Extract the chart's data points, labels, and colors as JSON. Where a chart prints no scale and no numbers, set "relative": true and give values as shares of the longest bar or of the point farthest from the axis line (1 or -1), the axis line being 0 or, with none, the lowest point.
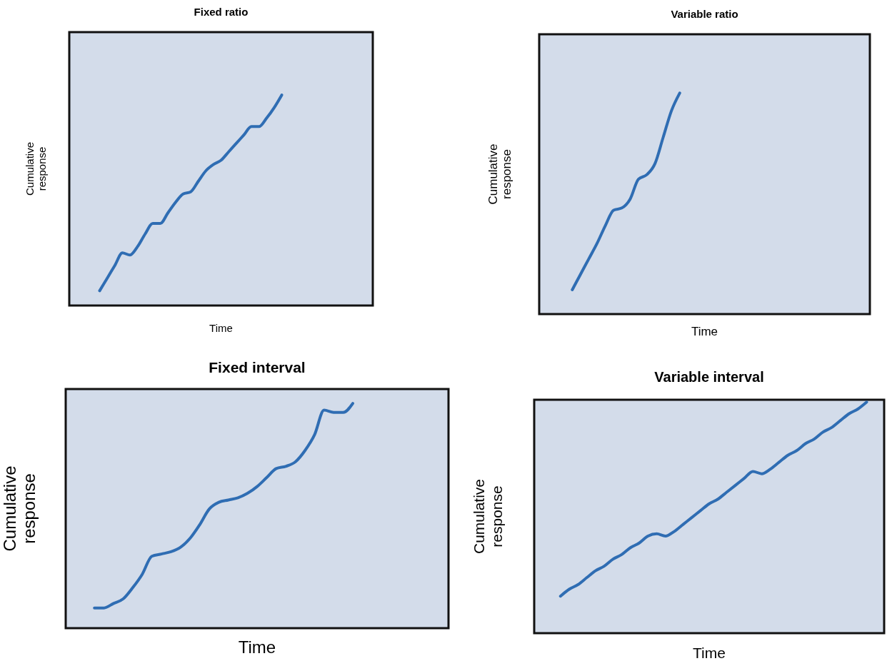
{
  "chart_data": [
    {
      "type": "line",
      "title": "Fixed ratio",
      "xlabel": "Time",
      "ylabel": "Cumulative response",
      "relative": true,
      "categories": [
        null,
        null,
        null,
        null,
        null,
        null,
        null,
        null,
        null,
        null,
        null,
        null,
        null,
        null,
        null,
        null,
        null,
        null,
        null,
        null,
        null,
        null,
        null,
        null,
        null,
        null,
        null,
        null,
        null,
        null,
        null,
        null,
        null,
        null,
        null,
        null,
        null,
        null,
        null,
        null,
        null
      ],
      "series": [
        {
          "color": "#2f6db3",
          "values": [
            null,
            null,
            null,
            null,
            0.07,
            0.13,
            0.19,
            0.25,
            0.24,
            0.28,
            0.34,
            0.39,
            0.39,
            0.44,
            0.49,
            0.53,
            0.54,
            0.59,
            0.64,
            0.67,
            0.69,
            0.73,
            0.77,
            0.81,
            0.85,
            0.85,
            0.89,
            0.94,
            1.0,
            null,
            null,
            null,
            null,
            null,
            null,
            null,
            null,
            null,
            null,
            null,
            null
          ]
        }
      ]
    },
    {
      "type": "line",
      "title": "Variable ratio",
      "xlabel": "Time",
      "ylabel": "Cumulative response",
      "relative": true,
      "categories": [
        null,
        null,
        null,
        null,
        null,
        null,
        null,
        null,
        null,
        null,
        null,
        null,
        null,
        null,
        null,
        null,
        null,
        null,
        null,
        null,
        null,
        null,
        null,
        null,
        null,
        null,
        null,
        null,
        null,
        null,
        null,
        null,
        null,
        null,
        null,
        null,
        null,
        null,
        null,
        null,
        null
      ],
      "series": [
        {
          "color": "#2f6db3",
          "values": [
            null,
            null,
            null,
            null,
            0.11,
            0.18,
            0.25,
            0.32,
            0.4,
            0.47,
            0.48,
            0.52,
            0.61,
            0.63,
            0.68,
            0.8,
            0.92,
            1.0,
            null,
            null,
            null,
            null,
            null,
            null,
            null,
            null,
            null,
            null,
            null,
            null,
            null,
            null,
            null,
            null,
            null,
            null,
            null,
            null,
            null,
            null,
            null
          ]
        }
      ]
    },
    {
      "type": "line",
      "title": "Fixed interval",
      "xlabel": "Time",
      "ylabel": "Cumulative response",
      "relative": true,
      "categories": [
        null,
        null,
        null,
        null,
        null,
        null,
        null,
        null,
        null,
        null,
        null,
        null,
        null,
        null,
        null,
        null,
        null,
        null,
        null,
        null,
        null,
        null,
        null,
        null,
        null,
        null,
        null,
        null,
        null,
        null,
        null,
        null,
        null,
        null,
        null,
        null,
        null,
        null,
        null,
        null,
        null
      ],
      "series": [
        {
          "color": "#2f6db3",
          "values": [
            null,
            null,
            null,
            0.09,
            0.09,
            0.11,
            0.13,
            0.18,
            0.24,
            0.32,
            0.33,
            0.34,
            0.36,
            0.4,
            0.46,
            0.53,
            0.56,
            0.57,
            0.58,
            0.6,
            0.63,
            0.67,
            0.71,
            0.72,
            0.74,
            0.79,
            0.86,
            0.97,
            0.96,
            0.96,
            1.0,
            null,
            null,
            null,
            null,
            null,
            null,
            null,
            null,
            null,
            null
          ]
        }
      ]
    },
    {
      "type": "line",
      "title": "Variable interval",
      "xlabel": "Time",
      "ylabel": "Cumulative response",
      "relative": true,
      "categories": [
        null,
        null,
        null,
        null,
        null,
        null,
        null,
        null,
        null,
        null,
        null,
        null,
        null,
        null,
        null,
        null,
        null,
        null,
        null,
        null,
        null,
        null,
        null,
        null,
        null,
        null,
        null,
        null,
        null,
        null,
        null,
        null,
        null,
        null,
        null,
        null,
        null,
        null,
        null,
        null,
        null
      ],
      "series": [
        {
          "color": "#2f6db3",
          "values": [
            null,
            null,
            null,
            0.16,
            0.19,
            0.21,
            0.24,
            0.27,
            0.29,
            0.32,
            0.34,
            0.37,
            0.39,
            0.42,
            0.43,
            0.42,
            0.44,
            0.47,
            0.5,
            0.53,
            0.56,
            0.58,
            0.61,
            0.64,
            0.67,
            0.7,
            0.69,
            0.71,
            0.74,
            0.77,
            0.79,
            0.82,
            0.84,
            0.87,
            0.89,
            0.92,
            0.95,
            0.97,
            1.0,
            null,
            null
          ]
        }
      ]
    }
  ]
}
